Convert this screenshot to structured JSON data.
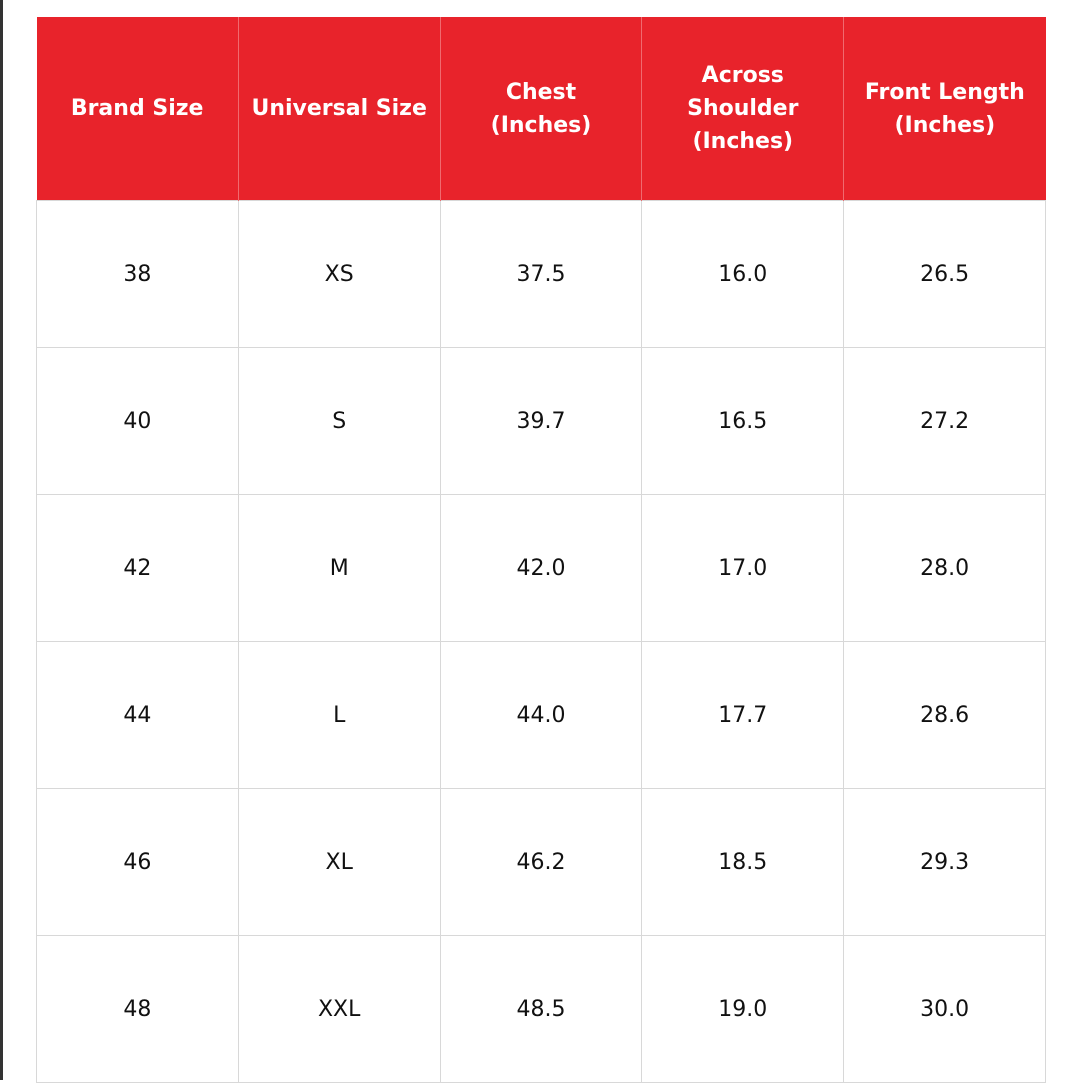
{
  "table": {
    "header": [
      [
        "Brand Size"
      ],
      [
        "Universal Size"
      ],
      [
        "Chest",
        "(Inches)"
      ],
      [
        "Across",
        "Shoulder",
        "(Inches)"
      ],
      [
        "Front Length",
        "(Inches)"
      ]
    ],
    "rows": [
      [
        "38",
        "XS",
        "37.5",
        "16.0",
        "26.5"
      ],
      [
        "40",
        "S",
        "39.7",
        "16.5",
        "27.2"
      ],
      [
        "42",
        "M",
        "42.0",
        "17.0",
        "28.0"
      ],
      [
        "44",
        "L",
        "44.0",
        "17.7",
        "28.6"
      ],
      [
        "46",
        "XL",
        "46.2",
        "18.5",
        "29.3"
      ],
      [
        "48",
        "XXL",
        "48.5",
        "19.0",
        "30.0"
      ]
    ]
  }
}
